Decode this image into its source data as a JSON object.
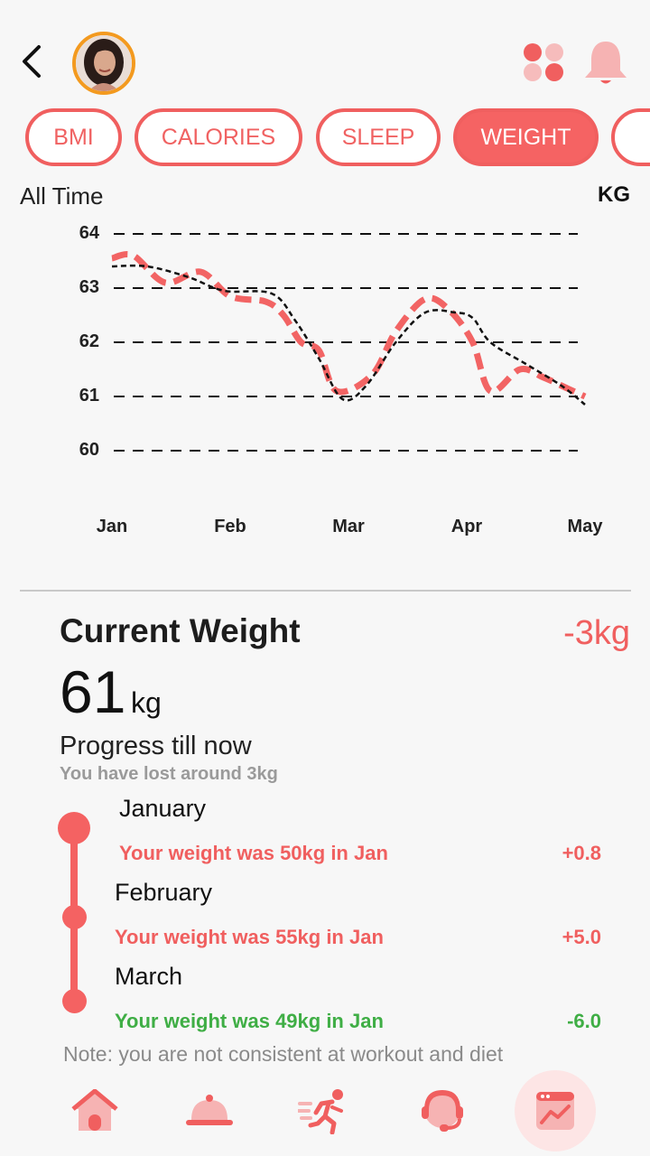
{
  "header": {
    "back_icon": "chevron-left-icon",
    "avatar_icon": "user-avatar",
    "grid_icon": "grid-dots-icon",
    "bell_icon": "bell-icon"
  },
  "tabs": [
    {
      "label": "BMI",
      "active": false
    },
    {
      "label": "CALORIES",
      "active": false
    },
    {
      "label": "SLEEP",
      "active": false
    },
    {
      "label": "WEIGHT",
      "active": true
    },
    {
      "label": "",
      "active": false
    }
  ],
  "chart_header": {
    "range": "All Time",
    "unit": "KG"
  },
  "chart_data": {
    "type": "line",
    "x": [
      "Jan",
      "Feb",
      "Mar",
      "Apr",
      "May"
    ],
    "ylim": [
      60,
      64
    ],
    "yticks": [
      64,
      63,
      62,
      61,
      60
    ],
    "grid": true,
    "series": [
      {
        "style": "dashed-thick",
        "color": "#f26464",
        "points": [
          [
            0,
            63.55
          ],
          [
            0.18,
            63.6
          ],
          [
            0.45,
            63.1
          ],
          [
            0.75,
            63.3
          ],
          [
            1.0,
            62.85
          ],
          [
            1.3,
            62.75
          ],
          [
            1.45,
            62.5
          ],
          [
            1.6,
            62.0
          ],
          [
            1.75,
            61.85
          ],
          [
            1.9,
            61.1
          ],
          [
            2.2,
            61.4
          ],
          [
            2.4,
            62.2
          ],
          [
            2.65,
            62.8
          ],
          [
            2.85,
            62.6
          ],
          [
            3.05,
            62.0
          ],
          [
            3.2,
            61.1
          ],
          [
            3.45,
            61.5
          ],
          [
            3.65,
            61.35
          ],
          [
            3.85,
            61.15
          ],
          [
            4.0,
            61.0
          ]
        ]
      },
      {
        "style": "dashed-thin",
        "color": "#111111",
        "points": [
          [
            0,
            63.4
          ],
          [
            0.3,
            63.4
          ],
          [
            0.65,
            63.2
          ],
          [
            0.95,
            62.95
          ],
          [
            1.35,
            62.9
          ],
          [
            1.55,
            62.4
          ],
          [
            1.75,
            61.7
          ],
          [
            1.95,
            60.95
          ],
          [
            2.15,
            61.2
          ],
          [
            2.4,
            62.0
          ],
          [
            2.65,
            62.55
          ],
          [
            2.9,
            62.55
          ],
          [
            3.05,
            62.45
          ],
          [
            3.2,
            62.0
          ],
          [
            3.5,
            61.6
          ],
          [
            3.8,
            61.2
          ],
          [
            4.0,
            60.85
          ]
        ]
      }
    ]
  },
  "current_weight": {
    "title": "Current Weight",
    "change": "-3kg",
    "value": "61",
    "unit": "kg"
  },
  "progress": {
    "title": "Progress till now",
    "subtitle": "You have lost around 3kg",
    "entries": [
      {
        "month": "January",
        "text": "Your weight was 50kg in Jan",
        "delta": "+0.8",
        "tone": "red"
      },
      {
        "month": "February",
        "text": "Your weight was 55kg in Jan",
        "delta": "+5.0",
        "tone": "red"
      },
      {
        "month": "March",
        "text": "Your weight was 49kg in Jan",
        "delta": "-6.0",
        "tone": "green"
      }
    ],
    "note": "Note: you are not consistent at workout and diet"
  },
  "bottom_nav": [
    {
      "icon": "home-icon",
      "active": false
    },
    {
      "icon": "food-cloche-icon",
      "active": false
    },
    {
      "icon": "running-person-icon",
      "active": false
    },
    {
      "icon": "support-agent-icon",
      "active": false
    },
    {
      "icon": "trend-chart-icon",
      "active": true
    }
  ]
}
